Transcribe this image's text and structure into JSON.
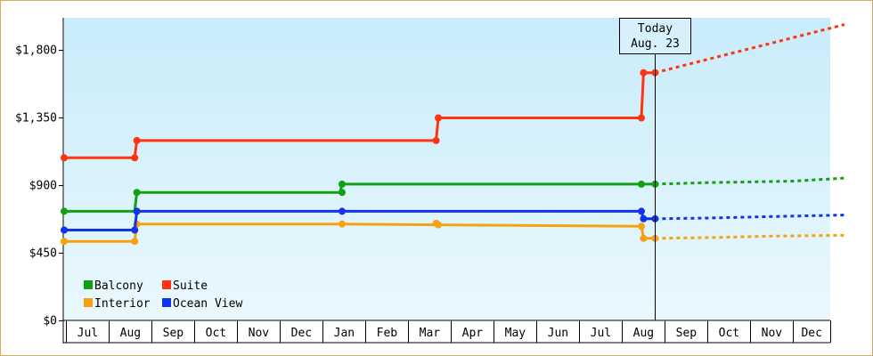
{
  "chart_data": {
    "type": "line",
    "title": "",
    "xlabel": "",
    "ylabel": "",
    "ylim": [
      0,
      2010
    ],
    "y_ticks": [
      {
        "value": 0,
        "label": "$0"
      },
      {
        "value": 450,
        "label": "$450"
      },
      {
        "value": 900,
        "label": "$900"
      },
      {
        "value": 1350,
        "label": "$1,350"
      },
      {
        "value": 1800,
        "label": "$1,800"
      }
    ],
    "x_range": [
      0.45,
      18.7
    ],
    "months": [
      {
        "label": "Jul",
        "pos": 1
      },
      {
        "label": "Aug",
        "pos": 2
      },
      {
        "label": "Sep",
        "pos": 3
      },
      {
        "label": "Oct",
        "pos": 4
      },
      {
        "label": "Nov",
        "pos": 5
      },
      {
        "label": "Dec",
        "pos": 6
      },
      {
        "label": "Jan",
        "pos": 7
      },
      {
        "label": "Feb",
        "pos": 8
      },
      {
        "label": "Mar",
        "pos": 9
      },
      {
        "label": "Apr",
        "pos": 10
      },
      {
        "label": "May",
        "pos": 11
      },
      {
        "label": "Jun",
        "pos": 12
      },
      {
        "label": "Jul",
        "pos": 13
      },
      {
        "label": "Aug",
        "pos": 14
      },
      {
        "label": "Sep",
        "pos": 15
      },
      {
        "label": "Oct",
        "pos": 16
      },
      {
        "label": "Nov",
        "pos": 17
      },
      {
        "label": "Dec",
        "pos": 18
      }
    ],
    "today": {
      "line1": "Today",
      "line2": "Aug. 23",
      "pos": 14.27
    },
    "grid": false,
    "legend": "bottom-left",
    "series": [
      {
        "name": "Balcony",
        "color": "#11a011",
        "points": [
          [
            0.45,
            725
          ],
          [
            2.1,
            725
          ],
          [
            2.15,
            850
          ],
          [
            6.9,
            850
          ],
          [
            6.95,
            905
          ],
          [
            13.95,
            905
          ],
          [
            14.27,
            905
          ]
        ],
        "forecast": [
          [
            14.27,
            905
          ],
          [
            15.5,
            915
          ],
          [
            16.5,
            920
          ],
          [
            17.5,
            925
          ],
          [
            18.7,
            945
          ]
        ]
      },
      {
        "name": "Suite",
        "color": "#ff3311",
        "points": [
          [
            0.45,
            1080
          ],
          [
            2.1,
            1080
          ],
          [
            2.15,
            1195
          ],
          [
            9.15,
            1195
          ],
          [
            9.2,
            1345
          ],
          [
            13.95,
            1345
          ],
          [
            14.0,
            1645
          ],
          [
            14.27,
            1645
          ]
        ],
        "forecast": [
          [
            14.27,
            1645
          ],
          [
            18.7,
            1965
          ]
        ]
      },
      {
        "name": "Interior",
        "color": "#f5a211",
        "points": [
          [
            0.45,
            525
          ],
          [
            2.1,
            525
          ],
          [
            2.15,
            640
          ],
          [
            6.95,
            640
          ],
          [
            9.2,
            635
          ],
          [
            13.95,
            625
          ],
          [
            14.0,
            545
          ],
          [
            14.27,
            545
          ]
        ],
        "forecast": [
          [
            14.27,
            545
          ],
          [
            15.5,
            550
          ],
          [
            17.0,
            560
          ],
          [
            18.7,
            565
          ]
        ]
      },
      {
        "name": "Ocean View",
        "color": "#1133ee",
        "points": [
          [
            0.45,
            600
          ],
          [
            2.1,
            600
          ],
          [
            2.15,
            725
          ],
          [
            6.95,
            725
          ],
          [
            13.95,
            725
          ],
          [
            14.0,
            675
          ],
          [
            14.27,
            675
          ]
        ],
        "forecast": [
          [
            14.27,
            675
          ],
          [
            15.5,
            680
          ],
          [
            17.0,
            690
          ],
          [
            18.7,
            700
          ]
        ]
      }
    ],
    "markers": {
      "Balcony": [
        [
          0.45,
          725
        ],
        [
          2.15,
          725
        ],
        [
          2.15,
          850
        ],
        [
          6.95,
          850
        ],
        [
          6.95,
          905
        ],
        [
          13.95,
          905
        ],
        [
          14.27,
          905
        ]
      ],
      "Suite": [
        [
          0.45,
          1080
        ],
        [
          2.1,
          1080
        ],
        [
          2.15,
          1195
        ],
        [
          9.15,
          1195
        ],
        [
          9.2,
          1345
        ],
        [
          13.95,
          1345
        ],
        [
          14.0,
          1645
        ],
        [
          14.27,
          1645
        ]
      ],
      "Interior": [
        [
          0.45,
          525
        ],
        [
          2.1,
          525
        ],
        [
          2.15,
          640
        ],
        [
          6.95,
          640
        ],
        [
          9.15,
          645
        ],
        [
          9.2,
          635
        ],
        [
          13.95,
          625
        ],
        [
          14.0,
          545
        ],
        [
          14.27,
          545
        ]
      ],
      "Ocean View": [
        [
          0.45,
          600
        ],
        [
          2.1,
          600
        ],
        [
          2.15,
          725
        ],
        [
          6.95,
          725
        ],
        [
          13.95,
          725
        ],
        [
          14.0,
          675
        ],
        [
          14.27,
          675
        ]
      ]
    },
    "legend_layout": [
      [
        "Balcony",
        "Suite"
      ],
      [
        "Interior",
        "Ocean View"
      ]
    ]
  }
}
